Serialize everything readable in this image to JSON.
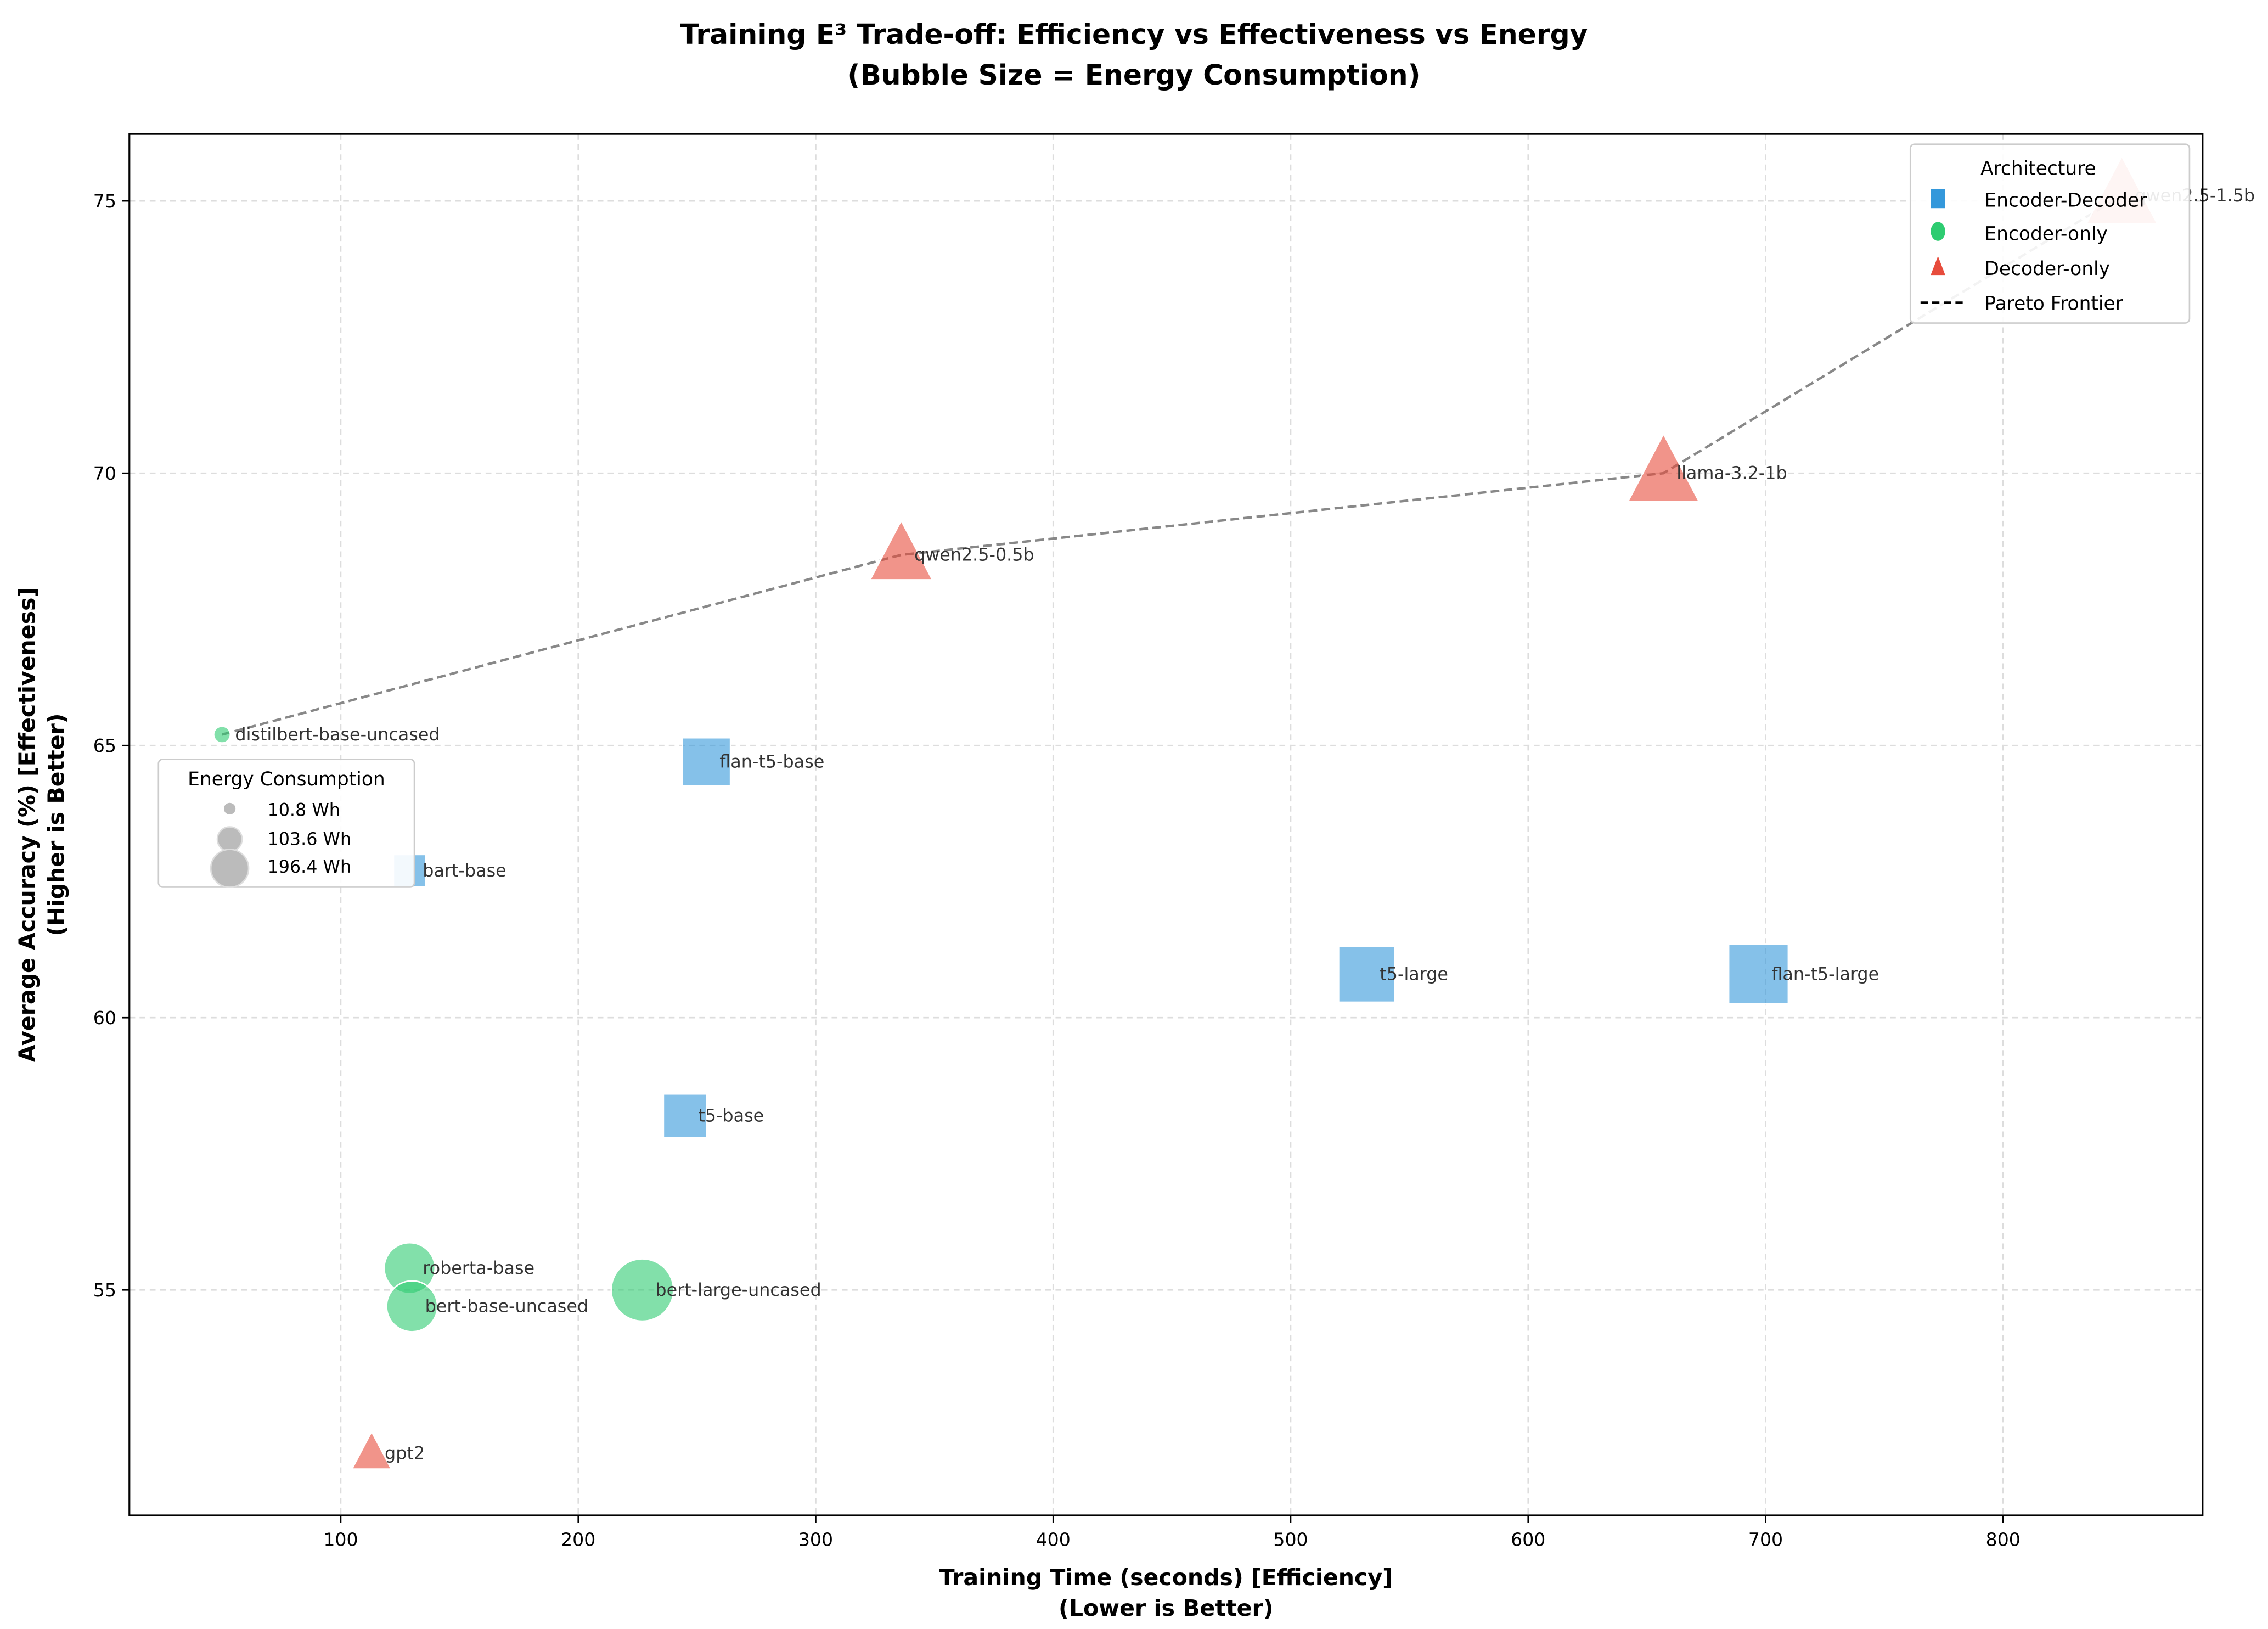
{
  "chart_data": {
    "type": "scatter",
    "title": "Training E³ Trade-off: Efficiency vs Effectiveness vs Energy",
    "subtitle": "(Bubble Size = Energy Consumption)",
    "xlabel": "Training Time (seconds) [Efficiency]",
    "xlabel2": "(Lower is Better)",
    "ylabel": "Average Accuracy (%) [Effectiveness]",
    "ylabel2": "(Higher is Better)",
    "xlim": [
      11,
      884
    ],
    "ylim": [
      50.86,
      76.23
    ],
    "xticks": [
      100,
      200,
      300,
      400,
      500,
      600,
      700,
      800
    ],
    "yticks": [
      55,
      60,
      65,
      70,
      75
    ],
    "grid": true,
    "architecture_legend": {
      "title": "Architecture",
      "placement": "top-right",
      "entries": [
        {
          "label": "Encoder-Decoder",
          "marker": "square",
          "color": "#3498db"
        },
        {
          "label": "Encoder-only",
          "marker": "circle",
          "color": "#2ecc71"
        },
        {
          "label": "Decoder-only",
          "marker": "triangle",
          "color": "#e74c3c"
        },
        {
          "label": "Pareto Frontier",
          "marker": "dashed-line",
          "color": "#000000"
        }
      ]
    },
    "energy_legend": {
      "title": "Energy Consumption",
      "placement": "center-left",
      "entries": [
        {
          "label": "10.8 Wh",
          "value": 10.8
        },
        {
          "label": "103.6 Wh",
          "value": 103.6
        },
        {
          "label": "196.4 Wh",
          "value": 196.4
        }
      ]
    },
    "points": [
      {
        "name": "distilbert-base-uncased",
        "arch": "Encoder-only",
        "x": 50,
        "y": 65.2,
        "energy": 10.8
      },
      {
        "name": "bart-base",
        "arch": "Encoder-Decoder",
        "x": 129,
        "y": 62.7,
        "energy": 50
      },
      {
        "name": "flan-t5-base",
        "arch": "Encoder-Decoder",
        "x": 254,
        "y": 64.7,
        "energy": 110
      },
      {
        "name": "t5-base",
        "arch": "Encoder-Decoder",
        "x": 245,
        "y": 58.2,
        "energy": 90
      },
      {
        "name": "roberta-base",
        "arch": "Encoder-only",
        "x": 129,
        "y": 55.4,
        "energy": 100
      },
      {
        "name": "bert-base-uncased",
        "arch": "Encoder-only",
        "x": 130,
        "y": 54.7,
        "energy": 100
      },
      {
        "name": "bert-large-uncased",
        "arch": "Encoder-only",
        "x": 227,
        "y": 55.0,
        "energy": 150
      },
      {
        "name": "gpt2",
        "arch": "Decoder-only",
        "x": 113,
        "y": 52.0,
        "energy": 60
      },
      {
        "name": "qwen2.5-0.5b",
        "arch": "Decoder-only",
        "x": 336,
        "y": 68.5,
        "energy": 150
      },
      {
        "name": "llama-3.2-1b",
        "arch": "Decoder-only",
        "x": 657,
        "y": 70.0,
        "energy": 196.4
      },
      {
        "name": "qwen2.5-1.5b",
        "arch": "Decoder-only",
        "x": 850,
        "y": 75.1,
        "energy": 196
      },
      {
        "name": "t5-large",
        "arch": "Encoder-Decoder",
        "x": 532,
        "y": 60.8,
        "energy": 150
      },
      {
        "name": "flan-t5-large",
        "arch": "Encoder-Decoder",
        "x": 697,
        "y": 60.8,
        "energy": 170
      }
    ],
    "pareto_frontier": [
      "distilbert-base-uncased",
      "qwen2.5-0.5b",
      "llama-3.2-1b",
      "qwen2.5-1.5b"
    ]
  }
}
